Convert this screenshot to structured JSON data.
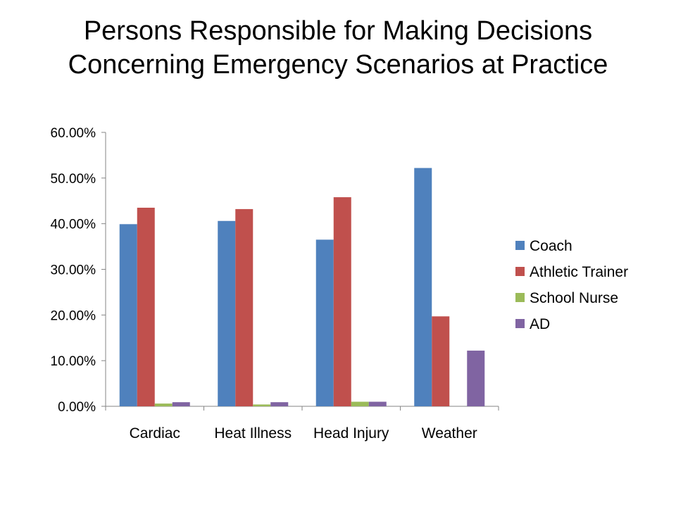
{
  "chart_data": {
    "type": "bar",
    "title": "Persons Responsible for Making Decisions Concerning Emergency Scenarios at Practice",
    "xlabel": "",
    "ylabel": "",
    "categories": [
      "Cardiac",
      "Heat Illness",
      "Head Injury",
      "Weather"
    ],
    "series": [
      {
        "name": "Coach",
        "color": "#4F81BD",
        "values": [
          0.399,
          0.406,
          0.365,
          0.522
        ]
      },
      {
        "name": "Athletic Trainer",
        "color": "#C0504D",
        "values": [
          0.435,
          0.432,
          0.458,
          0.197
        ]
      },
      {
        "name": "School Nurse",
        "color": "#9BBB59",
        "values": [
          0.006,
          0.004,
          0.01,
          0.0
        ]
      },
      {
        "name": "AD",
        "color": "#8064A2",
        "values": [
          0.009,
          0.009,
          0.01,
          0.122
        ]
      }
    ],
    "yticks": [
      "0.00%",
      "10.00%",
      "20.00%",
      "30.00%",
      "40.00%",
      "50.00%",
      "60.00%"
    ],
    "ylim": [
      0,
      0.6
    ],
    "grid": false,
    "legend_position": "right"
  }
}
